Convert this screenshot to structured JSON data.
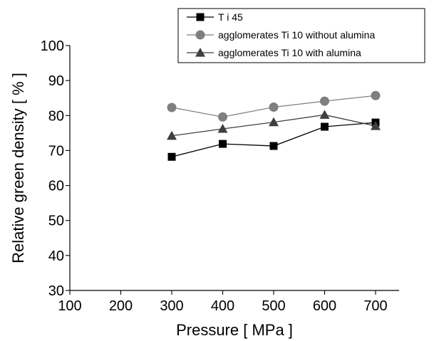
{
  "chart_data": {
    "type": "line",
    "title": "",
    "xlabel": "Pressure [ MPa ]",
    "ylabel": "Relative green density [ % ]",
    "xlim": [
      100,
      700
    ],
    "ylim": [
      30,
      100
    ],
    "xticks": [
      100,
      200,
      300,
      400,
      500,
      600,
      700
    ],
    "yticks": [
      30,
      40,
      50,
      60,
      70,
      80,
      90,
      100
    ],
    "legend_position": "top-right",
    "grid": false,
    "x": [
      300,
      400,
      500,
      600,
      700
    ],
    "series": [
      {
        "name": "T i 45",
        "marker": "square",
        "color": "#000000",
        "values": [
          68.2,
          71.9,
          71.3,
          76.8,
          78.0
        ]
      },
      {
        "name": "agglomerates Ti 10 without alumina",
        "marker": "circle",
        "color": "#7f7f7f",
        "values": [
          82.3,
          79.6,
          82.4,
          84.1,
          85.7
        ]
      },
      {
        "name": "agglomerates Ti 10 with alumina",
        "marker": "triangle",
        "color": "#3f3f3f",
        "values": [
          74.2,
          76.2,
          78.1,
          80.2,
          77.0
        ]
      }
    ]
  }
}
